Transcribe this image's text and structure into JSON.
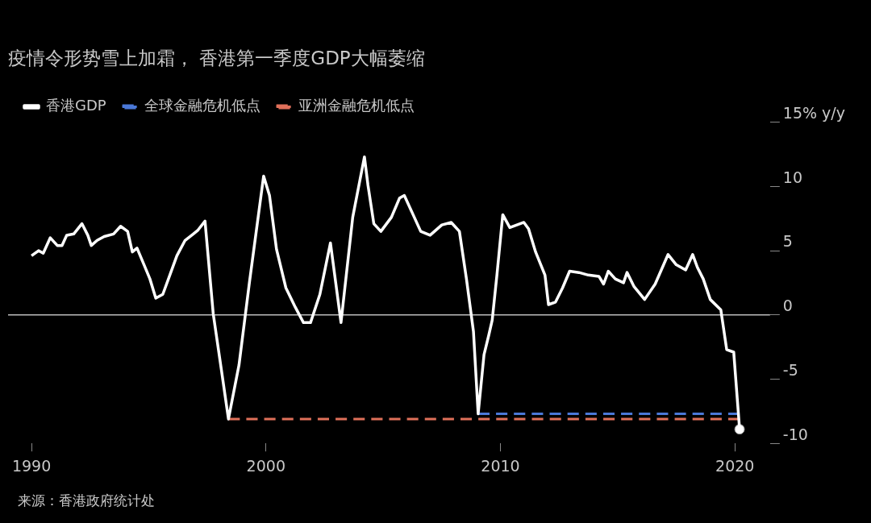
{
  "chart_data": {
    "type": "line",
    "title": "疫情令形势雪上加霜， 香港第一季度GDP大幅萎缩",
    "legend": "top left",
    "xlim": [
      1989,
      2021.5
    ],
    "xticks": [
      1990,
      2000,
      2010,
      2020
    ],
    "ylim": [
      -10,
      15
    ],
    "yticks": [
      -10,
      -5,
      0,
      5,
      10,
      {
        "value": 15,
        "label": "15% y/y"
      }
    ],
    "ref_lines": [
      {
        "axis": "y",
        "value": 0,
        "color": "#bbbbbb"
      }
    ],
    "annotations": [
      "来源：香港政府统计处"
    ],
    "series": [
      {
        "name": "香港GDP",
        "color": "#ffffff",
        "x": [
          1990.0,
          1990.3,
          1990.5,
          1990.8,
          1991.1,
          1991.3,
          1991.5,
          1991.8,
          1992.15,
          1992.4,
          1992.55,
          1992.8,
          1993.1,
          1993.5,
          1993.8,
          1994.1,
          1994.3,
          1994.5,
          1994.8,
          1995.05,
          1995.3,
          1995.6,
          1995.9,
          1996.2,
          1996.55,
          1996.9,
          1997.1,
          1997.4,
          1997.75,
          1998.1,
          1998.4,
          1998.85,
          1999.3,
          1999.9,
          2000.15,
          2000.45,
          2000.85,
          2001.25,
          2001.6,
          2001.9,
          2002.3,
          2002.75,
          2003.2,
          2003.7,
          2004.2,
          2004.35,
          2004.6,
          2004.9,
          2005.35,
          2005.7,
          2005.9,
          2006.6,
          2007.0,
          2007.5,
          2007.9,
          2008.25,
          2008.55,
          2008.85,
          2009.05,
          2009.3,
          2009.5,
          2009.65,
          2009.85,
          2010.1,
          2010.4,
          2010.7,
          2011.0,
          2011.2,
          2011.5,
          2011.9,
          2012.05,
          2012.35,
          2012.65,
          2012.95,
          2013.35,
          2013.75,
          2014.2,
          2014.4,
          2014.6,
          2014.9,
          2015.25,
          2015.4,
          2015.7,
          2016.15,
          2016.6,
          2017.15,
          2017.5,
          2017.9,
          2018.2,
          2018.4,
          2018.65,
          2018.95,
          2019.4,
          2019.65,
          2019.95,
          2020.2
        ],
        "values": [
          4.6,
          5.0,
          4.8,
          6.0,
          5.4,
          5.4,
          6.2,
          6.3,
          7.1,
          6.2,
          5.4,
          5.8,
          6.1,
          6.3,
          6.9,
          6.5,
          4.9,
          5.2,
          3.9,
          2.8,
          1.3,
          1.6,
          3.1,
          4.6,
          5.8,
          6.3,
          6.6,
          7.3,
          0.1,
          -4.3,
          -8.1,
          -3.9,
          2.6,
          10.8,
          9.3,
          5.1,
          2.1,
          0.6,
          -0.6,
          -0.6,
          1.6,
          5.6,
          -0.6,
          7.6,
          12.3,
          10.1,
          7.1,
          6.5,
          7.6,
          9.1,
          9.3,
          6.5,
          6.2,
          7.0,
          7.2,
          6.5,
          2.8,
          -1.3,
          -7.7,
          -3.1,
          -1.6,
          -0.4,
          3.1,
          7.8,
          6.8,
          7.0,
          7.2,
          6.7,
          4.9,
          3.1,
          0.8,
          1.0,
          2.1,
          3.4,
          3.3,
          3.1,
          3.0,
          2.4,
          3.4,
          2.8,
          2.5,
          3.3,
          2.2,
          1.2,
          2.4,
          4.7,
          3.9,
          3.5,
          4.7,
          3.7,
          2.8,
          1.2,
          0.4,
          -2.7,
          -2.9,
          -8.9
        ]
      },
      {
        "name": "全球金融危机低点",
        "color": "#4a78d8",
        "line_style": "dashed",
        "x": [
          2009.05,
          2020.2
        ],
        "values": [
          -7.7,
          -7.7
        ]
      },
      {
        "name": "亚洲金融危机低点",
        "color": "#e0705a",
        "line_style": "dashed",
        "x": [
          1998.4,
          2020.2
        ],
        "values": [
          -8.1,
          -8.1
        ]
      },
      {
        "type": "scatter",
        "color": "#ffffff",
        "marker": "circle",
        "x": [
          2020.2
        ],
        "values": [
          -8.9
        ]
      }
    ]
  }
}
